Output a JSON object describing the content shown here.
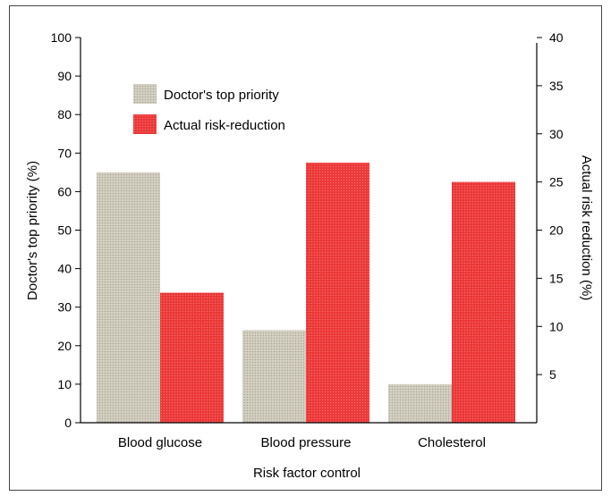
{
  "chart_data": {
    "type": "bar",
    "xlabel": "Risk factor control",
    "ylabel_left": "Doctor's top priority (%)",
    "ylabel_right": "Actual risk reduction (%)",
    "categories": [
      "Blood glucose",
      "Blood pressure",
      "Cholesterol"
    ],
    "left_ticks": [
      "0",
      "10",
      "20",
      "30",
      "40",
      "50",
      "60",
      "70",
      "80",
      "90",
      "100"
    ],
    "right_ticks": [
      "5",
      "10",
      "15",
      "20",
      "25",
      "30",
      "35",
      "40"
    ],
    "ylim_left": [
      0,
      100
    ],
    "ylim_right": [
      0,
      40
    ],
    "legend_position": "top-left",
    "series": [
      {
        "name": "Doctor's top priority",
        "axis": "left",
        "values": [
          65,
          24,
          10
        ],
        "color": "#c8c4b4"
      },
      {
        "name": "Actual risk-reduction",
        "axis": "right",
        "values": [
          13.5,
          27,
          25
        ],
        "color": "#ee3a3a"
      }
    ]
  }
}
